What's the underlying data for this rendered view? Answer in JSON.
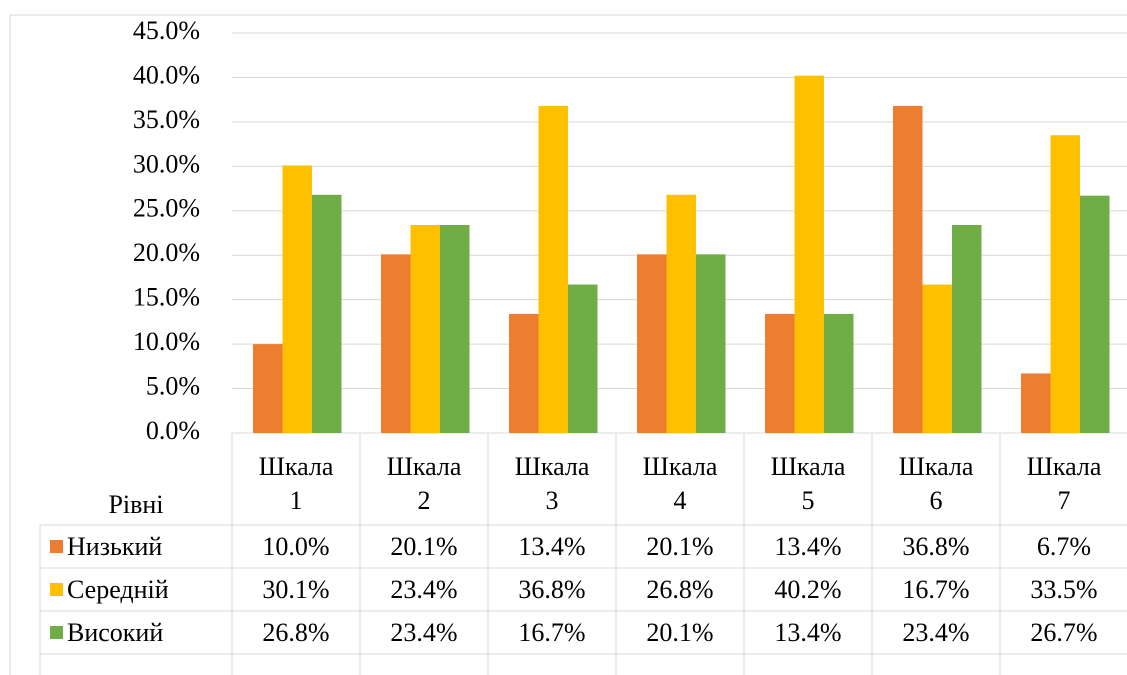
{
  "chart_data": {
    "type": "bar",
    "x_label": "Рівні",
    "categories": [
      "Шкала 1",
      "Шкала 2",
      "Шкала 3",
      "Шкала 4",
      "Шкала 5",
      "Шкала 6",
      "Шкала 7"
    ],
    "series": [
      {
        "name": "Низький",
        "color": "#ed7d31",
        "values": [
          10.0,
          20.1,
          13.4,
          20.1,
          13.4,
          36.8,
          6.7
        ],
        "value_labels": [
          "10.0%",
          "20.1%",
          "13.4%",
          "20.1%",
          "13.4%",
          "36.8%",
          "6.7%"
        ]
      },
      {
        "name": "Середній",
        "color": "#ffc000",
        "values": [
          30.1,
          23.4,
          36.8,
          26.8,
          40.2,
          16.7,
          33.5
        ],
        "value_labels": [
          "30.1%",
          "23.4%",
          "36.8%",
          "26.8%",
          "40.2%",
          "16.7%",
          "33.5%"
        ]
      },
      {
        "name": "Високий",
        "color": "#70ad47",
        "values": [
          26.8,
          23.4,
          16.7,
          20.1,
          13.4,
          23.4,
          26.7
        ],
        "value_labels": [
          "26.8%",
          "23.4%",
          "16.7%",
          "20.1%",
          "13.4%",
          "23.4%",
          "26.7%"
        ]
      }
    ],
    "ylim": [
      0,
      45
    ],
    "yticks": [
      {
        "value": 0,
        "label": "0.0%"
      },
      {
        "value": 5,
        "label": "5.0%"
      },
      {
        "value": 10,
        "label": "10.0%"
      },
      {
        "value": 15,
        "label": "15.0%"
      },
      {
        "value": 20,
        "label": "20.0%"
      },
      {
        "value": 25,
        "label": "25.0%"
      },
      {
        "value": 30,
        "label": "30.0%"
      },
      {
        "value": 35,
        "label": "35.0%"
      },
      {
        "value": 40,
        "label": "40.0%"
      },
      {
        "value": 45,
        "label": "45.0%"
      }
    ],
    "grid": true
  }
}
